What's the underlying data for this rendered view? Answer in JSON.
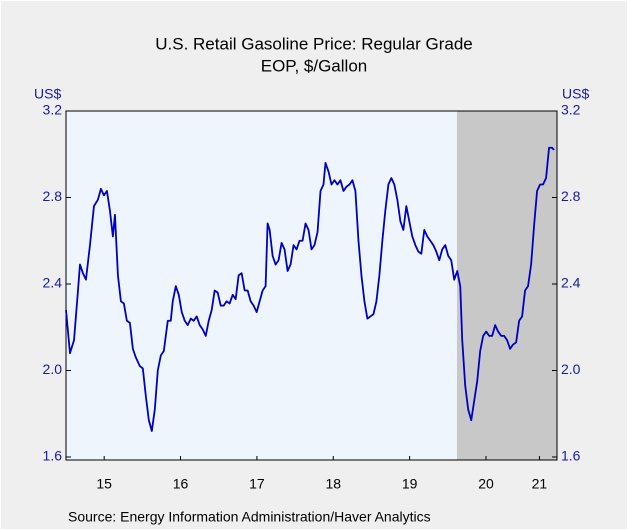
{
  "chart_data": {
    "type": "line",
    "title": "U.S. Retail Gasoline Price: Regular Grade",
    "subtitle": "EOP, $/Gallon",
    "y_label": "US$",
    "y2_label": "US$",
    "source": "Source:  Energy Information Administration/Haver Analytics",
    "color": "#0000c0",
    "recession": {
      "xlim": [
        2020.12,
        2021.43
      ],
      "color": "#c8c8c8"
    },
    "xlim": [
      2015,
      2021.43
    ],
    "xticks": [
      {
        "value": 2015.5,
        "label": "15"
      },
      {
        "value": 2016.5,
        "label": "16"
      },
      {
        "value": 2017.5,
        "label": "17"
      },
      {
        "value": 2018.5,
        "label": "18"
      },
      {
        "value": 2019.5,
        "label": "19"
      },
      {
        "value": 2020.5,
        "label": "20"
      },
      {
        "value": 2021.2,
        "label": "21"
      }
    ],
    "ylim": [
      1.6,
      3.2
    ],
    "yticks": [
      1.6,
      {
        "value": 2,
        "label": "2.0"
      },
      2.4,
      2.8,
      3.2
    ],
    "y2lim": [
      1.6,
      3.2
    ],
    "y2ticks": [
      1.6,
      {
        "value": 2,
        "label": "2.0"
      },
      2.4,
      2.8,
      3.2
    ],
    "x": [
      2015.0,
      2015.052,
      2015.105,
      2015.157,
      2015.183,
      2015.222,
      2015.261,
      2015.314,
      2015.366,
      2015.418,
      2015.457,
      2015.497,
      2015.536,
      2015.575,
      2015.614,
      2015.641,
      2015.68,
      2015.719,
      2015.758,
      2015.797,
      2015.837,
      2015.876,
      2015.915,
      2015.967,
      2016.006,
      2016.046,
      2016.085,
      2016.124,
      2016.163,
      2016.202,
      2016.242,
      2016.281,
      2016.333,
      2016.372,
      2016.398,
      2016.438,
      2016.477,
      2016.516,
      2016.555,
      2016.594,
      2016.634,
      2016.673,
      2016.712,
      2016.751,
      2016.79,
      2016.83,
      2016.869,
      2016.908,
      2016.947,
      2016.987,
      2017.026,
      2017.065,
      2017.104,
      2017.143,
      2017.183,
      2017.222,
      2017.261,
      2017.3,
      2017.34,
      2017.379,
      2017.418,
      2017.457,
      2017.497,
      2017.536,
      2017.575,
      2017.614,
      2017.64,
      2017.667,
      2017.706,
      2017.745,
      2017.784,
      2017.823,
      2017.862,
      2017.902,
      2017.941,
      2017.98,
      2018.019,
      2018.058,
      2018.098,
      2018.137,
      2018.176,
      2018.215,
      2018.254,
      2018.294,
      2018.333,
      2018.372,
      2018.398,
      2018.438,
      2018.477,
      2018.516,
      2018.555,
      2018.594,
      2018.634,
      2018.673,
      2018.712,
      2018.751,
      2018.79,
      2018.83,
      2018.869,
      2018.908,
      2018.947,
      2018.986,
      2019.026,
      2019.065,
      2019.104,
      2019.143,
      2019.182,
      2019.222,
      2019.261,
      2019.3,
      2019.339,
      2019.379,
      2019.418,
      2019.457,
      2019.496,
      2019.535,
      2019.575,
      2019.614,
      2019.653,
      2019.692,
      2019.731,
      2019.771,
      2019.81,
      2019.849,
      2019.888,
      2019.927,
      2019.967,
      2020.006,
      2020.045,
      2020.084,
      2020.124,
      2020.163,
      2020.189,
      2020.228,
      2020.267,
      2020.307,
      2020.346,
      2020.385,
      2020.424,
      2020.463,
      2020.503,
      2020.542,
      2020.581,
      2020.62,
      2020.659,
      2020.699,
      2020.738,
      2020.777,
      2020.816,
      2020.855,
      2020.895,
      2020.934,
      2020.973,
      2021.012,
      2021.051,
      2021.091,
      2021.13,
      2021.169,
      2021.208,
      2021.247,
      2021.287,
      2021.326,
      2021.365,
      2021.391
    ],
    "values": [
      2.28,
      2.08,
      2.14,
      2.37,
      2.49,
      2.45,
      2.42,
      2.58,
      2.76,
      2.79,
      2.84,
      2.81,
      2.83,
      2.74,
      2.62,
      2.72,
      2.44,
      2.32,
      2.31,
      2.23,
      2.22,
      2.1,
      2.06,
      2.02,
      2.01,
      1.88,
      1.77,
      1.72,
      1.82,
      2.0,
      2.07,
      2.09,
      2.23,
      2.23,
      2.32,
      2.39,
      2.35,
      2.27,
      2.23,
      2.21,
      2.24,
      2.23,
      2.25,
      2.21,
      2.19,
      2.16,
      2.23,
      2.28,
      2.37,
      2.36,
      2.3,
      2.3,
      2.32,
      2.31,
      2.35,
      2.33,
      2.44,
      2.45,
      2.37,
      2.37,
      2.32,
      2.3,
      2.27,
      2.32,
      2.37,
      2.39,
      2.68,
      2.65,
      2.53,
      2.49,
      2.51,
      2.59,
      2.56,
      2.46,
      2.49,
      2.58,
      2.56,
      2.6,
      2.6,
      2.68,
      2.65,
      2.56,
      2.58,
      2.64,
      2.83,
      2.86,
      2.96,
      2.92,
      2.86,
      2.88,
      2.86,
      2.88,
      2.83,
      2.85,
      2.86,
      2.88,
      2.83,
      2.6,
      2.44,
      2.32,
      2.24,
      2.25,
      2.26,
      2.32,
      2.44,
      2.6,
      2.74,
      2.86,
      2.89,
      2.86,
      2.79,
      2.69,
      2.65,
      2.76,
      2.69,
      2.62,
      2.58,
      2.55,
      2.54,
      2.65,
      2.62,
      2.6,
      2.58,
      2.55,
      2.51,
      2.56,
      2.58,
      2.53,
      2.51,
      2.42,
      2.46,
      2.39,
      2.14,
      1.93,
      1.82,
      1.77,
      1.86,
      1.95,
      2.09,
      2.16,
      2.18,
      2.16,
      2.16,
      2.21,
      2.18,
      2.16,
      2.16,
      2.14,
      2.1,
      2.12,
      2.13,
      2.23,
      2.25,
      2.37,
      2.39,
      2.49,
      2.67,
      2.83,
      2.86,
      2.86,
      2.89,
      3.03,
      3.03,
      3.02
    ]
  }
}
